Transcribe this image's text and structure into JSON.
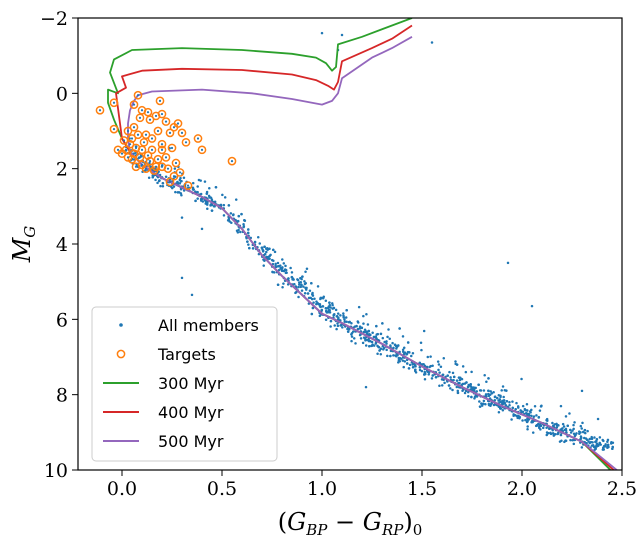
{
  "chart_data": {
    "type": "scatter",
    "title": "",
    "xlabel": "(G_BP − G_RP)_0",
    "ylabel": "M_G",
    "xlim": [
      -0.22,
      2.5
    ],
    "ylim": [
      10,
      -2
    ],
    "y_inverted": true,
    "x_ticks": [
      "0.0",
      "0.5",
      "1.0",
      "1.5",
      "2.0",
      "2.5"
    ],
    "y_ticks": [
      "−2",
      "0",
      "2",
      "4",
      "6",
      "8",
      "10"
    ],
    "grid": false,
    "legend_position": "bottom-left",
    "series": [
      {
        "name": "All members",
        "kind": "points",
        "color": "#1f77b4",
        "sequence": {
          "x": [
            0.02,
            0.06,
            0.1,
            0.16,
            0.22,
            0.3,
            0.4,
            0.5,
            0.6,
            0.7,
            0.8,
            0.9,
            1.0,
            1.1,
            1.2,
            1.3,
            1.4,
            1.5,
            1.6,
            1.7,
            1.8,
            1.9,
            2.0,
            2.1,
            2.2,
            2.3,
            2.45
          ],
          "y": [
            1.5,
            1.7,
            1.9,
            2.1,
            2.3,
            2.5,
            2.75,
            3.05,
            3.6,
            4.2,
            4.75,
            5.2,
            5.7,
            6.1,
            6.4,
            6.7,
            7.0,
            7.3,
            7.55,
            7.8,
            8.05,
            8.3,
            8.55,
            8.8,
            9.0,
            9.2,
            9.4
          ],
          "spread": [
            0.25,
            0.25,
            0.25,
            0.25,
            0.25,
            0.25,
            0.25,
            0.25,
            0.3,
            0.35,
            0.35,
            0.35,
            0.35,
            0.35,
            0.35,
            0.3,
            0.3,
            0.3,
            0.3,
            0.3,
            0.3,
            0.3,
            0.3,
            0.3,
            0.3,
            0.3,
            0.3
          ]
        },
        "extra_points": [
          [
            1.0,
            -1.6
          ],
          [
            1.1,
            -1.55
          ],
          [
            1.08,
            -1.15
          ],
          [
            1.55,
            -1.35
          ],
          [
            1.93,
            4.5
          ],
          [
            2.05,
            5.65
          ],
          [
            1.22,
            7.8
          ],
          [
            0.3,
            3.3
          ],
          [
            0.3,
            4.9
          ],
          [
            0.35,
            5.35
          ],
          [
            0.4,
            3.6
          ],
          [
            2.3,
            7.9
          ]
        ]
      },
      {
        "name": "Targets",
        "kind": "open-circles",
        "color": "#ff7f0e",
        "points": [
          [
            -0.11,
            0.45
          ],
          [
            -0.04,
            0.95
          ],
          [
            -0.04,
            0.25
          ],
          [
            0.06,
            0.3
          ],
          [
            0.08,
            0.05
          ],
          [
            0.1,
            0.45
          ],
          [
            0.13,
            0.5
          ],
          [
            0.17,
            0.6
          ],
          [
            0.19,
            0.2
          ],
          [
            0.2,
            0.55
          ],
          [
            0.22,
            0.75
          ],
          [
            0.26,
            0.9
          ],
          [
            0.24,
            1.05
          ],
          [
            0.3,
            1.05
          ],
          [
            0.32,
            1.3
          ],
          [
            0.38,
            1.2
          ],
          [
            0.4,
            1.5
          ],
          [
            0.2,
            1.35
          ],
          [
            0.15,
            1.2
          ],
          [
            0.12,
            1.1
          ],
          [
            0.08,
            1.1
          ],
          [
            0.06,
            0.9
          ],
          [
            0.03,
            1.0
          ],
          [
            0.02,
            1.5
          ],
          [
            0.0,
            1.6
          ],
          [
            -0.02,
            1.5
          ],
          [
            0.04,
            1.35
          ],
          [
            0.06,
            1.6
          ],
          [
            0.1,
            1.5
          ],
          [
            0.15,
            1.5
          ],
          [
            0.2,
            1.5
          ],
          [
            0.25,
            1.45
          ],
          [
            0.22,
            1.7
          ],
          [
            0.18,
            1.75
          ],
          [
            0.14,
            1.8
          ],
          [
            0.1,
            1.9
          ],
          [
            0.07,
            1.95
          ],
          [
            0.05,
            1.75
          ],
          [
            0.03,
            1.7
          ],
          [
            0.12,
            2.0
          ],
          [
            0.16,
            2.05
          ],
          [
            0.2,
            1.95
          ],
          [
            0.27,
            1.85
          ],
          [
            0.29,
            2.1
          ],
          [
            0.26,
            2.2
          ],
          [
            0.24,
            2.35
          ],
          [
            0.33,
            2.45
          ],
          [
            0.55,
            1.8
          ],
          [
            0.11,
            1.3
          ],
          [
            0.05,
            1.2
          ],
          [
            0.01,
            1.25
          ],
          [
            0.07,
            1.45
          ],
          [
            0.09,
            1.7
          ],
          [
            0.13,
            1.65
          ],
          [
            0.17,
            1.95
          ],
          [
            0.23,
            2.0
          ],
          [
            0.18,
            1.0
          ],
          [
            0.28,
            0.8
          ],
          [
            0.14,
            0.7
          ],
          [
            0.09,
            0.65
          ]
        ]
      },
      {
        "name": "300 Myr",
        "kind": "line",
        "color": "#2ca02c",
        "points": [
          [
            2.48,
            10.2
          ],
          [
            2.3,
            9.25
          ],
          [
            2.1,
            8.75
          ],
          [
            1.9,
            8.3
          ],
          [
            1.7,
            7.8
          ],
          [
            1.5,
            7.25
          ],
          [
            1.3,
            6.65
          ],
          [
            1.1,
            6.1
          ],
          [
            1.0,
            5.85
          ],
          [
            0.9,
            5.35
          ],
          [
            0.8,
            4.85
          ],
          [
            0.7,
            4.3
          ],
          [
            0.6,
            3.6
          ],
          [
            0.5,
            3.05
          ],
          [
            0.4,
            2.75
          ],
          [
            0.3,
            2.5
          ],
          [
            0.2,
            2.25
          ],
          [
            0.1,
            1.9
          ],
          [
            0.04,
            1.55
          ],
          [
            0.0,
            1.2
          ],
          [
            -0.04,
            0.7
          ],
          [
            -0.07,
            0.25
          ],
          [
            -0.07,
            -0.1
          ],
          [
            -0.02,
            0.0
          ],
          [
            -0.06,
            -0.55
          ],
          [
            -0.04,
            -0.9
          ],
          [
            0.05,
            -1.15
          ],
          [
            0.3,
            -1.2
          ],
          [
            0.6,
            -1.15
          ],
          [
            0.85,
            -1.05
          ],
          [
            0.97,
            -0.95
          ],
          [
            1.02,
            -0.8
          ],
          [
            1.05,
            -0.6
          ],
          [
            1.07,
            -0.7
          ],
          [
            1.08,
            -1.3
          ],
          [
            1.2,
            -1.5
          ],
          [
            1.35,
            -1.8
          ],
          [
            1.45,
            -2.0
          ]
        ]
      },
      {
        "name": "400 Myr",
        "kind": "line",
        "color": "#d62728",
        "points": [
          [
            2.5,
            10.2
          ],
          [
            2.3,
            9.25
          ],
          [
            2.1,
            8.75
          ],
          [
            1.9,
            8.3
          ],
          [
            1.7,
            7.8
          ],
          [
            1.5,
            7.25
          ],
          [
            1.3,
            6.65
          ],
          [
            1.1,
            6.1
          ],
          [
            1.0,
            5.85
          ],
          [
            0.9,
            5.35
          ],
          [
            0.8,
            4.85
          ],
          [
            0.7,
            4.3
          ],
          [
            0.6,
            3.6
          ],
          [
            0.5,
            3.05
          ],
          [
            0.4,
            2.75
          ],
          [
            0.3,
            2.5
          ],
          [
            0.2,
            2.25
          ],
          [
            0.1,
            1.9
          ],
          [
            0.04,
            1.55
          ],
          [
            0.0,
            1.2
          ],
          [
            -0.01,
            0.8
          ],
          [
            -0.02,
            0.4
          ],
          [
            -0.03,
            0.0
          ],
          [
            0.02,
            -0.15
          ],
          [
            0.0,
            -0.45
          ],
          [
            0.1,
            -0.6
          ],
          [
            0.3,
            -0.65
          ],
          [
            0.6,
            -0.62
          ],
          [
            0.85,
            -0.5
          ],
          [
            0.97,
            -0.35
          ],
          [
            1.03,
            -0.2
          ],
          [
            1.06,
            -0.1
          ],
          [
            1.08,
            -0.3
          ],
          [
            1.1,
            -0.85
          ],
          [
            1.25,
            -1.2
          ],
          [
            1.35,
            -1.45
          ],
          [
            1.45,
            -1.8
          ]
        ]
      },
      {
        "name": "500 Myr",
        "kind": "line",
        "color": "#9467bd",
        "points": [
          [
            2.52,
            10.2
          ],
          [
            2.3,
            9.25
          ],
          [
            2.1,
            8.75
          ],
          [
            1.9,
            8.3
          ],
          [
            1.7,
            7.8
          ],
          [
            1.5,
            7.25
          ],
          [
            1.3,
            6.65
          ],
          [
            1.1,
            6.1
          ],
          [
            1.0,
            5.85
          ],
          [
            0.9,
            5.35
          ],
          [
            0.8,
            4.85
          ],
          [
            0.7,
            4.3
          ],
          [
            0.6,
            3.6
          ],
          [
            0.5,
            3.05
          ],
          [
            0.4,
            2.75
          ],
          [
            0.3,
            2.5
          ],
          [
            0.2,
            2.25
          ],
          [
            0.1,
            1.9
          ],
          [
            0.04,
            1.55
          ],
          [
            0.03,
            1.2
          ],
          [
            0.03,
            0.8
          ],
          [
            0.04,
            0.45
          ],
          [
            0.06,
            0.2
          ],
          [
            0.08,
            0.05
          ],
          [
            0.15,
            -0.05
          ],
          [
            0.4,
            -0.1
          ],
          [
            0.65,
            0.0
          ],
          [
            0.85,
            0.15
          ],
          [
            1.0,
            0.3
          ],
          [
            1.05,
            0.2
          ],
          [
            1.08,
            0.0
          ],
          [
            1.1,
            -0.4
          ],
          [
            1.25,
            -0.95
          ],
          [
            1.35,
            -1.2
          ],
          [
            1.45,
            -1.5
          ]
        ]
      }
    ]
  }
}
